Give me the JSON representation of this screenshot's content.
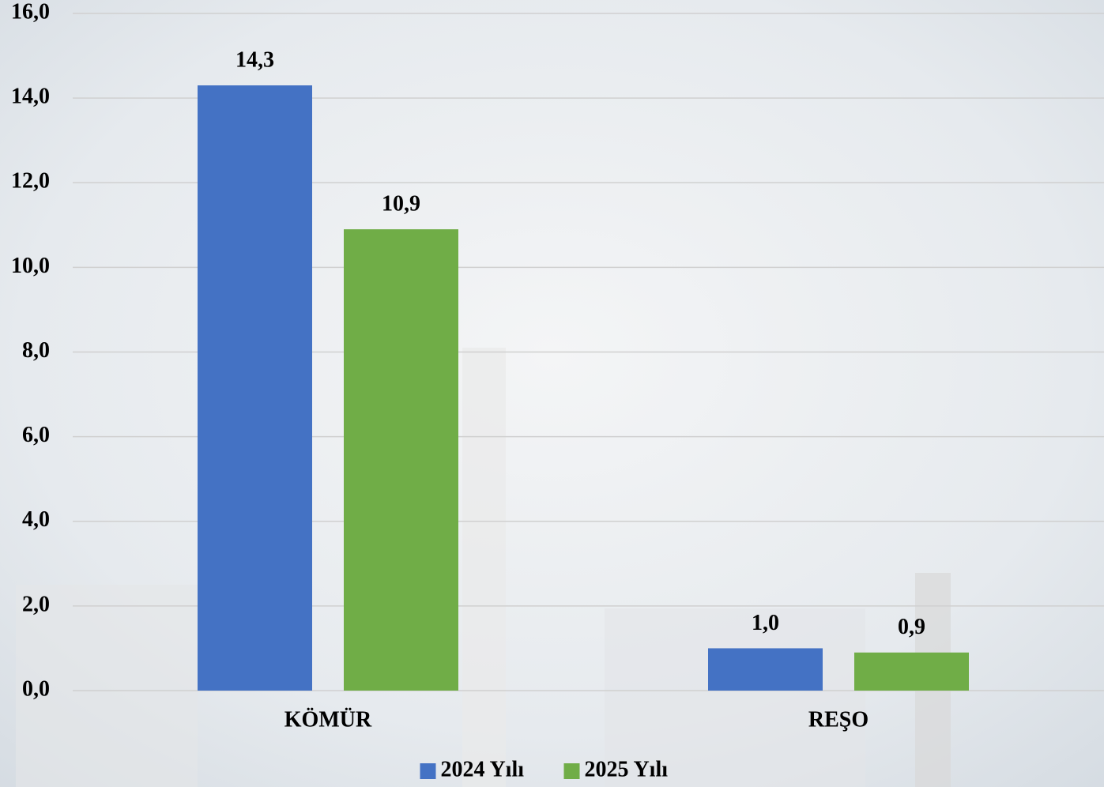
{
  "chart_data": {
    "type": "bar",
    "categories": [
      "KÖMÜR",
      "REŞO"
    ],
    "series": [
      {
        "name": "2024 Yılı",
        "color": "#4472c4",
        "values": [
          14.3,
          1.0
        ],
        "value_labels": [
          "14,3",
          "1,0"
        ]
      },
      {
        "name": "2025 Yılı",
        "color": "#70ad47",
        "values": [
          10.9,
          0.9
        ],
        "value_labels": [
          "10,9",
          "0,9"
        ]
      }
    ],
    "ylim": [
      0,
      16
    ],
    "yticks": [
      {
        "value": 0,
        "label": "0,0"
      },
      {
        "value": 2,
        "label": "2,0"
      },
      {
        "value": 4,
        "label": "4,0"
      },
      {
        "value": 6,
        "label": "6,0"
      },
      {
        "value": 8,
        "label": "8,0"
      },
      {
        "value": 10,
        "label": "10,0"
      },
      {
        "value": 12,
        "label": "12,0"
      },
      {
        "value": 14,
        "label": "14,0"
      },
      {
        "value": 16,
        "label": "16,0"
      }
    ],
    "grid": true,
    "legend": "bottom"
  }
}
